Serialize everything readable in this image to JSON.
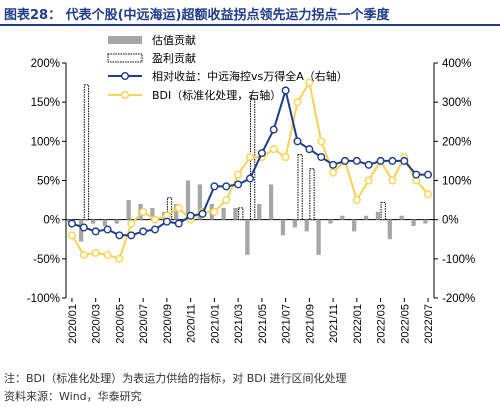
{
  "page": {
    "title": "图表28：  代表个股(中远海运)超额收益拐点领先运力拐点一个季度",
    "note": "注：BDI（标准化处理）为表运力供给的指标，对 BDI 进行区间化处理",
    "source": "资料来源：Wind，华泰研究"
  },
  "colors": {
    "title": "#1f3c88",
    "valuation_bar": "#a6a6a6",
    "earnings_bar": "#000000",
    "relative_line": "#1f3c88",
    "bdi_line": "#f5d354"
  },
  "chart_data": {
    "type": "bar+line",
    "title": "",
    "categories": [
      "2020/01",
      "2020/02",
      "2020/03",
      "2020/04",
      "2020/05",
      "2020/06",
      "2020/07",
      "2020/08",
      "2020/09",
      "2020/10",
      "2020/11",
      "2020/12",
      "2021/01",
      "2021/02",
      "2021/03",
      "2021/04",
      "2021/05",
      "2021/06",
      "2021/07",
      "2021/08",
      "2021/09",
      "2021/10",
      "2021/11",
      "2021/12",
      "2022/01",
      "2022/02",
      "2022/03",
      "2022/04",
      "2022/05",
      "2022/06",
      "2022/07"
    ],
    "x_tick_labels": [
      "2020/01",
      "2020/03",
      "2020/05",
      "2020/07",
      "2020/09",
      "2020/11",
      "2021/01",
      "2021/03",
      "2021/05",
      "2021/07",
      "2021/09",
      "2021/11",
      "2022/01",
      "2022/03",
      "2022/05",
      "2022/07"
    ],
    "left_axis": {
      "ylim": [
        -100,
        200
      ],
      "ticks": [
        "-100%",
        "-50%",
        "0%",
        "50%",
        "100%",
        "150%",
        "200%"
      ]
    },
    "right_axis": {
      "ylim": [
        -200,
        400
      ],
      "ticks": [
        "-200%",
        "-100%",
        "0%",
        "100%",
        "200%",
        "300%",
        "400%"
      ]
    },
    "legend": [
      "估值贡献",
      "盈利贡献",
      "相对收益：中远海控vs万得全A（右轴）",
      "BDI（标准化处理，右轴）"
    ],
    "legend_position": "top-center",
    "series": [
      {
        "name": "估值贡献",
        "kind": "bar",
        "axis": "left",
        "values": [
          -3,
          -28,
          -5,
          -8,
          -5,
          25,
          20,
          15,
          10,
          20,
          50,
          45,
          20,
          15,
          15,
          -45,
          20,
          45,
          -20,
          -10,
          -15,
          -45,
          -5,
          5,
          -15,
          5,
          10,
          -25,
          5,
          -8,
          -5
        ]
      },
      {
        "name": "盈利贡献",
        "kind": "bar",
        "axis": "left",
        "values": [
          0,
          172,
          0,
          0,
          0,
          0,
          0,
          0,
          28,
          0,
          0,
          0,
          0,
          0,
          15,
          155,
          0,
          0,
          0,
          83,
          65,
          0,
          0,
          0,
          0,
          0,
          22,
          0,
          0,
          0,
          0
        ]
      },
      {
        "name": "相对收益：中远海控vs万得全A（右轴）",
        "kind": "line",
        "axis": "right",
        "values": [
          -10,
          -20,
          -30,
          -25,
          -40,
          -40,
          -30,
          -25,
          -5,
          -10,
          10,
          15,
          85,
          85,
          90,
          105,
          170,
          230,
          330,
          200,
          180,
          160,
          140,
          150,
          150,
          140,
          150,
          150,
          150,
          115,
          115
        ]
      },
      {
        "name": "BDI（标准化处理，右轴）",
        "kind": "line",
        "axis": "right",
        "values": [
          -40,
          -90,
          -85,
          -90,
          -100,
          -10,
          20,
          0,
          10,
          30,
          0,
          20,
          20,
          50,
          115,
          160,
          160,
          180,
          160,
          300,
          350,
          200,
          120,
          150,
          50,
          100,
          150,
          100,
          160,
          100,
          65
        ]
      }
    ]
  }
}
